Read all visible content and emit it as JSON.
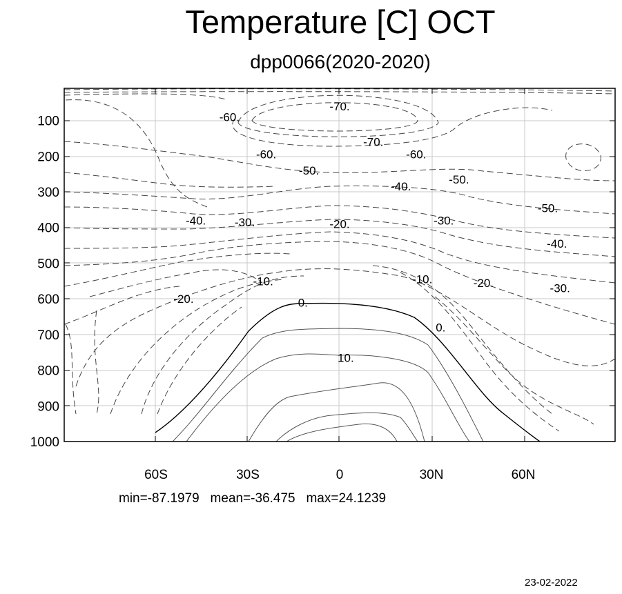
{
  "title": "Temperature [C] OCT",
  "subtitle": "dpp0066(2020-2020)",
  "stats_text": "min=-87.1979   mean=-36.475   max=24.1239",
  "date": "23-02-2022",
  "chart_data": {
    "type": "contour",
    "title": "Temperature [C] OCT",
    "subtitle": "dpp0066(2020-2020)",
    "xlabel": "",
    "ylabel": "",
    "x_ticks": [
      "60S",
      "30S",
      "0",
      "30N",
      "60N"
    ],
    "x_tick_values": [
      -60,
      -30,
      0,
      30,
      60
    ],
    "xlim": [
      -90,
      90
    ],
    "y_ticks": [
      "100",
      "200",
      "300",
      "400",
      "500",
      "600",
      "700",
      "800",
      "900",
      "1000"
    ],
    "y_tick_values": [
      100,
      200,
      300,
      400,
      500,
      600,
      700,
      800,
      900,
      1000
    ],
    "ylim": [
      1000,
      10
    ],
    "grid": true,
    "negative_contours": "dashed",
    "positive_contours": "solid",
    "contour_labels": [
      {
        "text": "-60.",
        "lat": -36,
        "p": 90
      },
      {
        "text": "-70.",
        "lat": 0,
        "p": 60
      },
      {
        "text": "-70.",
        "lat": 11,
        "p": 160
      },
      {
        "text": "-60.",
        "lat": -24,
        "p": 195
      },
      {
        "text": "-60.",
        "lat": 25,
        "p": 195
      },
      {
        "text": "-50.",
        "lat": -10,
        "p": 240
      },
      {
        "text": "-50.",
        "lat": 39,
        "p": 265
      },
      {
        "text": "-40.",
        "lat": 20,
        "p": 285
      },
      {
        "text": "-50.",
        "lat": 68,
        "p": 345
      },
      {
        "text": "-40.",
        "lat": -47,
        "p": 380
      },
      {
        "text": "-30.",
        "lat": -31,
        "p": 385
      },
      {
        "text": "-20.",
        "lat": 0,
        "p": 390
      },
      {
        "text": "-30.",
        "lat": 34,
        "p": 380
      },
      {
        "text": "-40.",
        "lat": 71,
        "p": 445
      },
      {
        "text": "-10.",
        "lat": -25,
        "p": 550
      },
      {
        "text": "-10.",
        "lat": 27,
        "p": 545
      },
      {
        "text": "-20.",
        "lat": 47,
        "p": 555
      },
      {
        "text": "-30.",
        "lat": 72,
        "p": 570
      },
      {
        "text": "-20.",
        "lat": -51,
        "p": 600
      },
      {
        "text": "0.",
        "lat": -12,
        "p": 610
      },
      {
        "text": "0.",
        "lat": 33,
        "p": 680
      },
      {
        "text": "10.",
        "lat": 2,
        "p": 765
      }
    ],
    "min": -87.1979,
    "mean": -36.475,
    "max": 24.1239
  }
}
